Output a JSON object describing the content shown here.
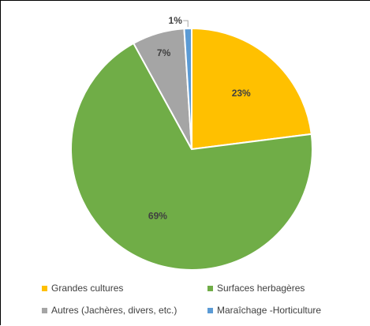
{
  "chart_data": {
    "type": "pie",
    "title": "",
    "slices": [
      {
        "label": "Grandes cultures",
        "value": 23,
        "display": "23%",
        "color": "#FFC000"
      },
      {
        "label": "Surfaces herbagères",
        "value": 69,
        "display": "69%",
        "color": "#70AD47"
      },
      {
        "label": "Autres (Jachères, divers, etc.)",
        "value": 7,
        "display": "7%",
        "color": "#A5A5A5"
      },
      {
        "label": "Maraîchage -Horticulture",
        "value": 1,
        "display": "1%",
        "color": "#5B9BD5"
      }
    ],
    "legend_position": "bottom"
  }
}
